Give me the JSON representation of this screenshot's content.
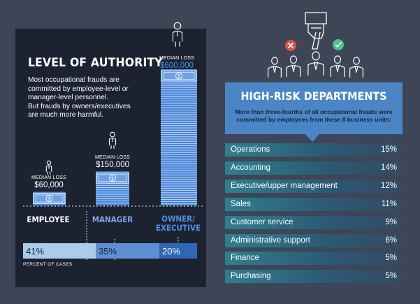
{
  "authority": {
    "title": "LEVEL OF AUTHORITY",
    "intro": [
      "Most occupational frauds are committed by employee-level or manager-level personnel.",
      "But frauds by owners/executives are much more harmful."
    ],
    "median_label": "MEDIAN LOSS",
    "percent_caption": "PERCENT OF CASES",
    "levels": [
      {
        "name": "EMPLOYEE",
        "median_loss": "$60,000",
        "percent": "41%"
      },
      {
        "name": "MANAGER",
        "median_loss": "$150,000",
        "percent": "35%"
      },
      {
        "name": "OWNER/ EXECUTIVE",
        "name_lines": [
          "OWNER/",
          "EXECUTIVE"
        ],
        "median_loss": "$600,000",
        "percent": "20%"
      }
    ]
  },
  "departments": {
    "title": "HIGH-RISK DEPARTMENTS",
    "subtitle": "More than three-fourths of all occupational frauds were committed by employees from these 8 business units:",
    "items": [
      {
        "name": "Operations",
        "percent": "15%"
      },
      {
        "name": "Accounting",
        "percent": "14%"
      },
      {
        "name": "Executive/upper management",
        "percent": "12%"
      },
      {
        "name": "Sales",
        "percent": "11%"
      },
      {
        "name": "Customer service",
        "percent": "9%"
      },
      {
        "name": "Administrative support",
        "percent": "6%"
      },
      {
        "name": "Finance",
        "percent": "5%"
      },
      {
        "name": "Purchasing",
        "percent": "5%"
      }
    ]
  },
  "chart_data": [
    {
      "type": "bar",
      "categories": [
        "EMPLOYEE",
        "MANAGER",
        "OWNER/EXECUTIVE"
      ],
      "series": [
        {
          "values": [
            60000,
            150000,
            600000
          ]
        }
      ],
      "percent_of_cases": [
        41,
        35,
        20
      ]
    },
    {
      "type": "table",
      "title": "HIGH-RISK DEPARTMENTS",
      "categories": [
        "Operations",
        "Accounting",
        "Executive/upper management",
        "Sales",
        "Customer service",
        "Administrative support",
        "Finance",
        "Purchasing"
      ],
      "values": [
        15,
        14,
        12,
        11,
        9,
        6,
        5,
        5
      ]
    }
  ],
  "colors": {
    "background": "#3d4557",
    "panel": "#1c2230",
    "accent_blue": "#4a86c6",
    "bar_light": "#a9ccec",
    "bar_mid": "#5d8fd3",
    "bar_dark": "#2d67b5",
    "owner_label": "#4f8fe0",
    "manager_label": "#7aa7e6",
    "reject": "#d9534f",
    "approve": "#4fc08d"
  },
  "icons": [
    "person-icon",
    "money-stack-icon",
    "pointing-hand-icon",
    "reject-icon",
    "approve-icon",
    "group-icon"
  ]
}
